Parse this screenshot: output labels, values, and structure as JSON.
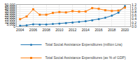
{
  "chart_data": {
    "type": "line",
    "x": [
      2004,
      2005,
      2006,
      2007,
      2008,
      2009,
      2010,
      2011,
      2012,
      2013,
      2014,
      2015,
      2016,
      2017,
      2018,
      2019,
      2020
    ],
    "series": [
      {
        "name": "Total Social Assistance Expenditures (million Lira)",
        "marker": "circle",
        "values": [
          1500,
          2500,
          5000,
          4200,
          4500,
          5500,
          6500,
          7500,
          9000,
          10500,
          12000,
          14000,
          17000,
          20000,
          25000,
          32000,
          47000
        ]
      },
      {
        "name": "Total Social Assistance Expenditures (as % of GDP)",
        "marker": "square",
        "axis": "y2",
        "values": [
          0.4,
          0.55,
          0.95,
          0.65,
          0.65,
          0.75,
          0.8,
          0.78,
          0.85,
          0.82,
          0.83,
          1.02,
          0.98,
          0.9,
          0.86,
          0.88,
          1.05
        ]
      }
    ],
    "xlim": [
      2003.5,
      2020.8
    ],
    "xticks": [
      2004,
      2006,
      2008,
      2010,
      2012,
      2014,
      2016,
      2018,
      2020
    ],
    "ylim": [
      0,
      50000
    ],
    "yticks": [
      0,
      {
        "value": 5000,
        "label": "5,000"
      },
      {
        "value": 10000,
        "label": "10,000"
      },
      {
        "value": 15000,
        "label": "15,000"
      },
      {
        "value": 20000,
        "label": "20,000"
      },
      {
        "value": 25000,
        "label": "25,000"
      },
      {
        "value": 30000,
        "label": "30,000"
      },
      {
        "value": 35000,
        "label": "35,000"
      },
      {
        "value": 40000,
        "label": "40,000"
      },
      {
        "value": 45000,
        "label": "45,000"
      },
      {
        "value": 50000,
        "label": "50,000"
      }
    ],
    "y2lim": [
      0,
      1.2
    ],
    "y2ticks": [
      {
        "value": 0.0,
        "label": "0.0"
      },
      0.2,
      0.4,
      0.6,
      0.8,
      {
        "value": 1.0,
        "label": "1.0"
      },
      1.2
    ],
    "grid": true,
    "legend": "bottom"
  }
}
